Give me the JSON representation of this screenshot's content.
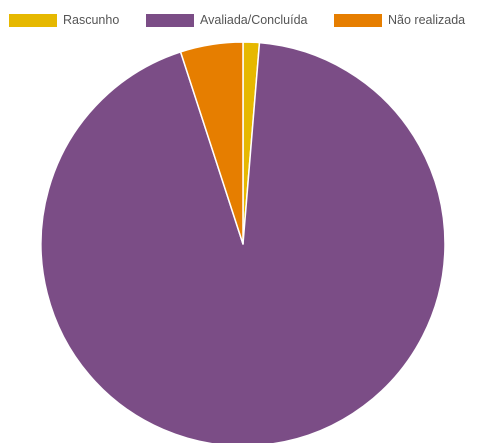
{
  "chart_data": {
    "type": "pie",
    "title": "",
    "legend_position": "top",
    "series": [
      {
        "name": "Rascunho",
        "value": 1.3,
        "color": "#e6b800"
      },
      {
        "name": "Avaliada/Concluída",
        "value": 93.7,
        "color": "#7b4d86"
      },
      {
        "name": "Não realizada",
        "value": 5.0,
        "color": "#e67e00"
      }
    ],
    "slice_order": [
      "Rascunho",
      "Avaliada/Concluída",
      "Não realizada"
    ],
    "start": "12 o'clock",
    "direction": "clockwise",
    "slice_border_color": "#ffffff"
  }
}
